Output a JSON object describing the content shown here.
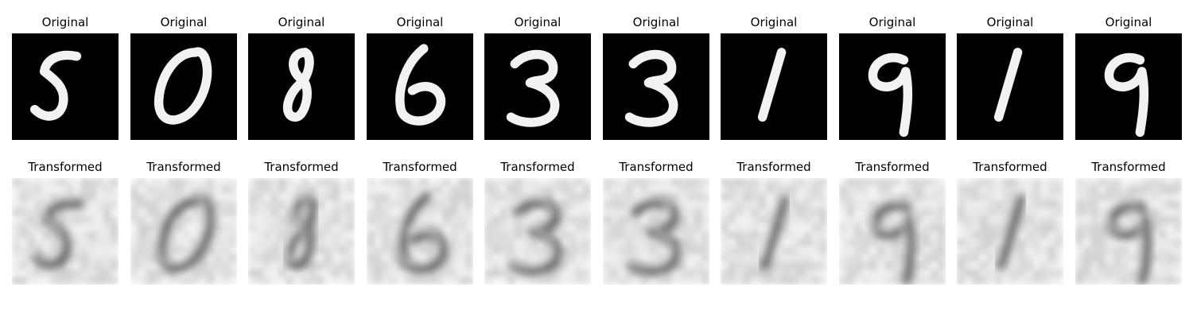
{
  "figure": {
    "top_row": [
      {
        "title": "Original",
        "digit": "5"
      },
      {
        "title": "Original",
        "digit": "0"
      },
      {
        "title": "Original",
        "digit": "8"
      },
      {
        "title": "Original",
        "digit": "6"
      },
      {
        "title": "Original",
        "digit": "3"
      },
      {
        "title": "Original",
        "digit": "3"
      },
      {
        "title": "Original",
        "digit": "1"
      },
      {
        "title": "Original",
        "digit": "9"
      },
      {
        "title": "Original",
        "digit": "1"
      },
      {
        "title": "Original",
        "digit": "9"
      }
    ],
    "bottom_row": [
      {
        "title": "Transformed"
      },
      {
        "title": "Transformed"
      },
      {
        "title": "Transformed"
      },
      {
        "title": "Transformed"
      },
      {
        "title": "Transformed"
      },
      {
        "title": "Transformed"
      },
      {
        "title": "Transformed"
      },
      {
        "title": "Transformed"
      },
      {
        "title": "Transformed"
      },
      {
        "title": "Transformed"
      }
    ],
    "colors": {
      "original_bg": "#000000",
      "original_stroke": "#f2f2f2",
      "transformed_bg": "#e6e6e6",
      "transformed_stroke": "#3a3a3a"
    }
  }
}
